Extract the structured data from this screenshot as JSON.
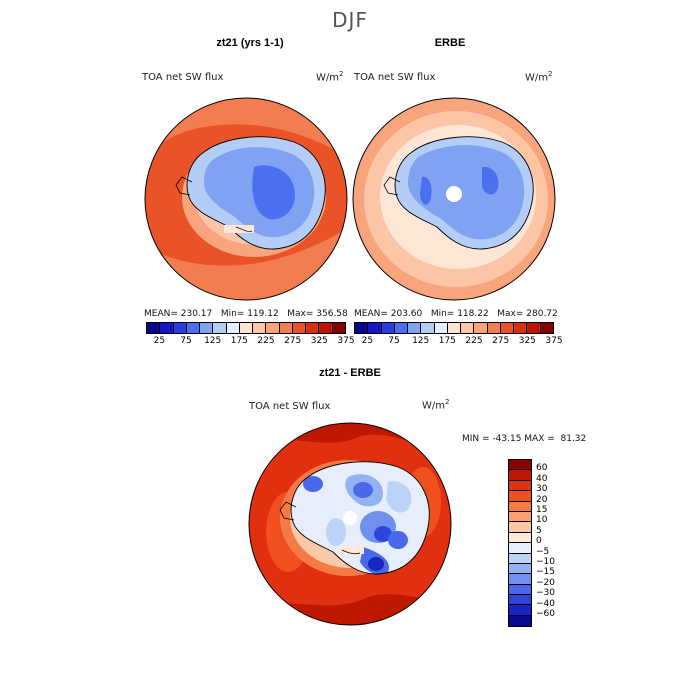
{
  "page_title": "DJF",
  "panel1": {
    "title": "zt21 (yrs 1-1)",
    "field_label": "TOA net SW flux",
    "units_base": "W/m",
    "units_exp": "2",
    "stats": "MEAN= 230.17   Min= 119.12   Max= 356.58"
  },
  "panel2": {
    "title": "ERBE",
    "field_label": "TOA net SW flux",
    "units_base": "W/m",
    "units_exp": "2",
    "stats": "MEAN= 203.60   Min= 118.22   Max= 280.72"
  },
  "panel3": {
    "title": "zt21 - ERBE",
    "field_label": "TOA net SW flux",
    "units_base": "W/m",
    "units_exp": "2",
    "stats": "MIN = -43.15 MAX =  81.32"
  },
  "colorbar_abs": {
    "colors": [
      "#07078a",
      "#1616c8",
      "#2b3fe0",
      "#4c6ff0",
      "#7fa2f2",
      "#b3cdf7",
      "#e6eefb",
      "#fde6d6",
      "#fbc5a6",
      "#f8a47d",
      "#f27d50",
      "#ea5328",
      "#d73010",
      "#b51704",
      "#860300"
    ],
    "tick_labels": [
      "25",
      "75",
      "125",
      "175",
      "225",
      "275",
      "325",
      "375"
    ]
  },
  "colorbar_diff": {
    "colors": [
      "#8b0000",
      "#c01800",
      "#e03010",
      "#f05020",
      "#f67a45",
      "#f9a070",
      "#fbc8a8",
      "#fde8da",
      "#e6eefb",
      "#bcd2f6",
      "#93b2f1",
      "#6f90ee",
      "#4968ea",
      "#2d45dc",
      "#1626c4",
      "#0a0a90"
    ],
    "tick_labels": [
      "60",
      "40",
      "30",
      "20",
      "15",
      "10",
      "5",
      "0",
      "−5",
      "−10",
      "−15",
      "−20",
      "−30",
      "−40",
      "−60"
    ]
  }
}
